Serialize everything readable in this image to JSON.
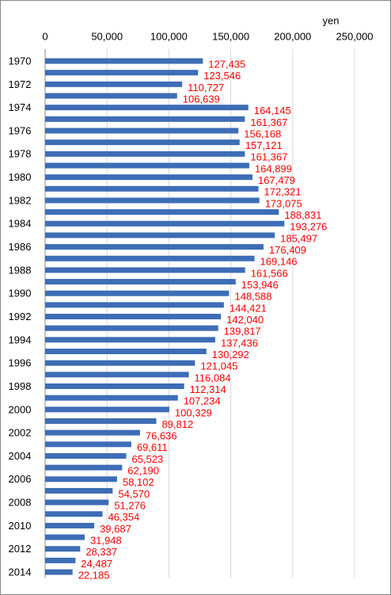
{
  "chart_data": {
    "type": "barh",
    "x_unit_label": "yen",
    "categories": [
      "1970",
      null,
      "1972",
      null,
      "1974",
      null,
      "1976",
      null,
      "1978",
      null,
      "1980",
      null,
      "1982",
      null,
      "1984",
      null,
      "1986",
      null,
      "1988",
      null,
      "1990",
      null,
      "1992",
      null,
      "1994",
      null,
      "1996",
      null,
      "1998",
      null,
      "2000",
      null,
      "2002",
      null,
      "2004",
      null,
      "2006",
      null,
      "2008",
      null,
      "2010",
      null,
      "2012",
      null,
      "2014"
    ],
    "values": [
      127435,
      123546,
      110727,
      106639,
      164145,
      161367,
      156168,
      157121,
      161367,
      164899,
      167479,
      172321,
      173075,
      188831,
      193276,
      185497,
      176409,
      169146,
      161566,
      153946,
      148588,
      144421,
      142040,
      139817,
      137436,
      130292,
      121045,
      116084,
      112314,
      107234,
      100329,
      89812,
      76636,
      69611,
      65523,
      62190,
      58102,
      54570,
      51276,
      46354,
      39687,
      31948,
      28337,
      24487,
      22185
    ],
    "value_labels": [
      "127,435",
      "123,546",
      "110,727",
      "106,639",
      "164,145",
      "161,367",
      "156,168",
      "157,121",
      "161,367",
      "164,899",
      "167,479",
      "172,321",
      "173,075",
      "188,831",
      "193,276",
      "185,497",
      "176,409",
      "169,146",
      "161,566",
      "153,946",
      "148,588",
      "144,421",
      "142,040",
      "139,817",
      "137,436",
      "130,292",
      "121,045",
      "116,084",
      "112,314",
      "107,234",
      "100,329",
      "89,812",
      "76,636",
      "69,611",
      "65,523",
      "62,190",
      "58,102",
      "54,570",
      "51,276",
      "46,354",
      "39,687",
      "31,948",
      "28,337",
      "24,487",
      "22,185"
    ],
    "color": "#3d6db5",
    "label_color": "#ff0000",
    "xlim": [
      0,
      250000
    ],
    "xticks": [
      0,
      {
        "value": 50000,
        "label": "50,000"
      },
      {
        "value": 100000,
        "label": "100,000"
      },
      {
        "value": 150000,
        "label": "150,000"
      },
      {
        "value": 200000,
        "label": "200,000"
      },
      {
        "value": 250000,
        "label": "250,000"
      }
    ],
    "grid": true
  }
}
